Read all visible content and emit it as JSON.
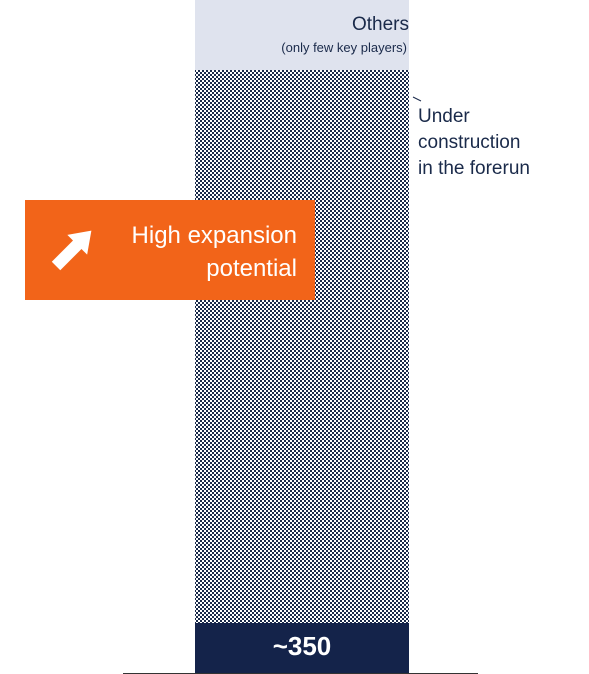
{
  "chart_data": {
    "type": "bar",
    "categories": [
      "Others"
    ],
    "segments": [
      {
        "label": "Under construction in the forerun",
        "pattern": "checkered",
        "color": "#1a2a4a"
      }
    ],
    "total_label": "~350",
    "header": {
      "title": "Others",
      "subtitle": "(only few key players)"
    },
    "annotation": "Under\nconstruction\nin the forerun",
    "callout": {
      "text": "High expansion\npotential",
      "color": "#f26419",
      "icon": "arrow-up-right-icon"
    },
    "colors": {
      "header_bg": "#dfe3ee",
      "total_bg": "#14234a",
      "pattern": "#1a2a4a",
      "baseline": "#333333"
    }
  }
}
